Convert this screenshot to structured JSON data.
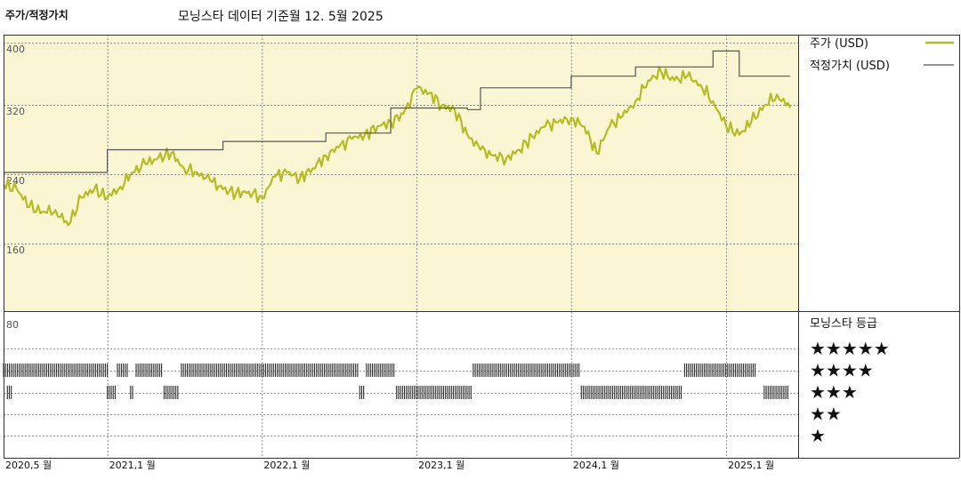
{
  "header": {
    "left_label": "주가/적정가치",
    "title": "모닝스타 데이터 기준월 12. 5월 2025"
  },
  "colors": {
    "price": "#b5bb22",
    "fair_value": "#555555",
    "plot_bg": "#faf6d3",
    "bars": "#2b2b2b",
    "grid": "#999999"
  },
  "chart_data": {
    "type": "line",
    "x_axis": {
      "start": "2020-05",
      "end": "2025-06",
      "tick_labels": [
        "2020,5 월",
        "2021,1 월",
        "2022,1 월",
        "2023,1 월",
        "2024,1 월",
        "2025,1 월"
      ],
      "ticks": [
        "2020-05",
        "2021-01",
        "2022-01",
        "2023-01",
        "2024-01",
        "2025-01"
      ]
    },
    "y_axis": {
      "ylim": [
        80,
        430
      ],
      "tick_labels": [
        "400",
        "320",
        "240",
        "160",
        "80"
      ],
      "ticks": [
        400,
        320,
        240,
        160,
        80
      ]
    },
    "legend": {
      "placement": "top-right"
    },
    "series": [
      {
        "name": "주가 (USD)",
        "color": "#b5bb22",
        "points": [
          [
            "2020-05",
            230
          ],
          [
            "2020-06",
            225
          ],
          [
            "2020-07",
            204
          ],
          [
            "2020-08",
            198
          ],
          [
            "2020-09",
            200
          ],
          [
            "2020-10",
            182
          ],
          [
            "2020-11",
            215
          ],
          [
            "2020-12",
            225
          ],
          [
            "2021-01",
            215
          ],
          [
            "2021-02",
            228
          ],
          [
            "2021-03",
            245
          ],
          [
            "2021-04",
            255
          ],
          [
            "2021-05",
            262
          ],
          [
            "2021-06",
            268
          ],
          [
            "2021-07",
            250
          ],
          [
            "2021-08",
            245
          ],
          [
            "2021-09",
            235
          ],
          [
            "2021-10",
            225
          ],
          [
            "2021-11",
            220
          ],
          [
            "2021-12",
            222
          ],
          [
            "2022-01",
            215
          ],
          [
            "2022-02",
            240
          ],
          [
            "2022-03",
            245
          ],
          [
            "2022-04",
            238
          ],
          [
            "2022-05",
            250
          ],
          [
            "2022-06",
            265
          ],
          [
            "2022-07",
            275
          ],
          [
            "2022-08",
            285
          ],
          [
            "2022-09",
            290
          ],
          [
            "2022-10",
            300
          ],
          [
            "2022-11",
            305
          ],
          [
            "2022-12",
            315
          ],
          [
            "2023-01",
            345
          ],
          [
            "2023-02",
            340
          ],
          [
            "2023-03",
            325
          ],
          [
            "2023-04",
            320
          ],
          [
            "2023-05",
            290
          ],
          [
            "2023-06",
            272
          ],
          [
            "2023-07",
            265
          ],
          [
            "2023-08",
            262
          ],
          [
            "2023-09",
            272
          ],
          [
            "2023-10",
            288
          ],
          [
            "2023-11",
            300
          ],
          [
            "2023-12",
            305
          ],
          [
            "2024-01",
            310
          ],
          [
            "2024-02",
            300
          ],
          [
            "2024-03",
            268
          ],
          [
            "2024-04",
            300
          ],
          [
            "2024-05",
            312
          ],
          [
            "2024-06",
            330
          ],
          [
            "2024-07",
            355
          ],
          [
            "2024-08",
            365
          ],
          [
            "2024-09",
            355
          ],
          [
            "2024-10",
            360
          ],
          [
            "2024-11",
            350
          ],
          [
            "2024-12",
            330
          ],
          [
            "2025-01",
            300
          ],
          [
            "2025-02",
            290
          ],
          [
            "2025-03",
            305
          ],
          [
            "2025-04",
            325
          ],
          [
            "2025-05",
            338
          ],
          [
            "2025-06",
            322
          ]
        ]
      },
      {
        "name": "적정가치 (USD)",
        "color": "#555555",
        "step": true,
        "points": [
          [
            "2020-05",
            245
          ],
          [
            "2021-01",
            272
          ],
          [
            "2021-10",
            282
          ],
          [
            "2022-06",
            292
          ],
          [
            "2022-11",
            322
          ],
          [
            "2023-05",
            320
          ],
          [
            "2023-06",
            346
          ],
          [
            "2024-01",
            360
          ],
          [
            "2024-06",
            371
          ],
          [
            "2024-12",
            390
          ],
          [
            "2025-02",
            360
          ],
          [
            "2025-06",
            360
          ]
        ]
      }
    ],
    "rating_panel": {
      "title": "모닝스타 등급",
      "stars": [
        "★★★★★",
        "★★★★",
        "★★★",
        "★★",
        "★"
      ],
      "row_ticks": [
        5,
        4,
        3,
        2,
        1
      ],
      "periods": [
        {
          "stars": 4,
          "from": "2020-05",
          "to": "2021-01"
        },
        {
          "stars": 3,
          "from": "2020-05-10",
          "to": "2020-05-20"
        },
        {
          "stars": 3,
          "from": "2021-01-01",
          "to": "2021-01-20"
        },
        {
          "stars": 4,
          "from": "2021-01-25",
          "to": "2021-02-20"
        },
        {
          "stars": 3,
          "from": "2021-02-25",
          "to": "2021-03-05"
        },
        {
          "stars": 4,
          "from": "2021-03-10",
          "to": "2021-05-10"
        },
        {
          "stars": 3,
          "from": "2021-05-15",
          "to": "2021-06-20"
        },
        {
          "stars": 4,
          "from": "2021-06-25",
          "to": "2022-08-15"
        },
        {
          "stars": 3,
          "from": "2022-08-20",
          "to": "2022-09-01"
        },
        {
          "stars": 4,
          "from": "2022-09-05",
          "to": "2022-11-10"
        },
        {
          "stars": 3,
          "from": "2022-11-15",
          "to": "2023-05-10"
        },
        {
          "stars": 4,
          "from": "2023-05-15",
          "to": "2024-01-20"
        },
        {
          "stars": 3,
          "from": "2024-01-25",
          "to": "2024-09-20"
        },
        {
          "stars": 4,
          "from": "2024-09-25",
          "to": "2025-03-15"
        },
        {
          "stars": 3,
          "from": "2025-04-01",
          "to": "2025-05-31"
        }
      ]
    }
  }
}
